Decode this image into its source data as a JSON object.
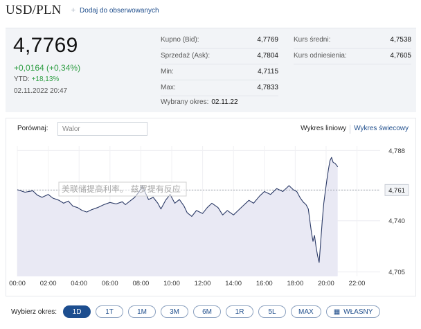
{
  "header": {
    "title": "USD/PLN",
    "watch_label": "Dodaj do obserwowanych"
  },
  "quote": {
    "price": "4,7769",
    "change": "+0,0164 (+0,34%)",
    "ytd_label": "YTD:",
    "ytd_value": "+18,13%",
    "datetime": "02.11.2022 20:47",
    "positive_color": "#2f9e44"
  },
  "stats": {
    "bid_label": "Kupno (Bid):",
    "bid_value": "4,7769",
    "ask_label": "Sprzedaż (Ask):",
    "ask_value": "4,7804",
    "min_label": "Min:",
    "min_value": "4,7115",
    "max_label": "Max:",
    "max_value": "4,7833",
    "avg_label": "Kurs średni:",
    "avg_value": "4,7538",
    "ref_label": "Kurs odniesienia:",
    "ref_value": "4,7605",
    "selected_label": "Wybrany okres:",
    "selected_value": "02.11.22"
  },
  "compare": {
    "label": "Porównaj:",
    "placeholder": "Walor"
  },
  "chart_tabs": {
    "line": "Wykres liniowy",
    "candle": "Wykres świecowy"
  },
  "chart_data": {
    "type": "area",
    "x_ticks": [
      "00:00",
      "02:00",
      "04:00",
      "06:00",
      "08:00",
      "10:00",
      "12:00",
      "14:00",
      "16:00",
      "18:00",
      "20:00",
      "22:00"
    ],
    "y_ticks": [
      "4,788",
      "4,761",
      "4,740",
      "4,705"
    ],
    "ylim": [
      4.702,
      4.791
    ],
    "reference_line": 4.761,
    "reference_label": "4,761",
    "series_points": [
      [
        0.0,
        4.7612
      ],
      [
        0.5,
        4.7595
      ],
      [
        1.0,
        4.7605
      ],
      [
        1.3,
        4.7575
      ],
      [
        1.6,
        4.756
      ],
      [
        2.0,
        4.758
      ],
      [
        2.3,
        4.7555
      ],
      [
        2.7,
        4.754
      ],
      [
        3.0,
        4.752
      ],
      [
        3.3,
        4.7535
      ],
      [
        3.6,
        4.75
      ],
      [
        3.9,
        4.749
      ],
      [
        4.2,
        4.747
      ],
      [
        4.5,
        4.746
      ],
      [
        4.8,
        4.7475
      ],
      [
        5.2,
        4.749
      ],
      [
        5.6,
        4.751
      ],
      [
        6.0,
        4.7525
      ],
      [
        6.4,
        4.7515
      ],
      [
        6.8,
        4.753
      ],
      [
        7.0,
        4.751
      ],
      [
        7.3,
        4.7535
      ],
      [
        7.6,
        4.756
      ],
      [
        7.9,
        4.76
      ],
      [
        8.1,
        4.764
      ],
      [
        8.3,
        4.759
      ],
      [
        8.5,
        4.7545
      ],
      [
        8.8,
        4.756
      ],
      [
        9.1,
        4.752
      ],
      [
        9.3,
        4.748
      ],
      [
        9.6,
        4.754
      ],
      [
        9.9,
        4.758
      ],
      [
        10.2,
        4.752
      ],
      [
        10.5,
        4.7545
      ],
      [
        10.8,
        4.75
      ],
      [
        11.0,
        4.7455
      ],
      [
        11.3,
        4.743
      ],
      [
        11.6,
        4.747
      ],
      [
        12.0,
        4.745
      ],
      [
        12.3,
        4.749
      ],
      [
        12.6,
        4.752
      ],
      [
        13.0,
        4.749
      ],
      [
        13.3,
        4.744
      ],
      [
        13.6,
        4.747
      ],
      [
        14.0,
        4.744
      ],
      [
        14.3,
        4.747
      ],
      [
        14.6,
        4.75
      ],
      [
        15.0,
        4.754
      ],
      [
        15.3,
        4.752
      ],
      [
        15.7,
        4.757
      ],
      [
        16.0,
        4.76
      ],
      [
        16.4,
        4.758
      ],
      [
        16.8,
        4.762
      ],
      [
        17.2,
        4.76
      ],
      [
        17.6,
        4.764
      ],
      [
        17.9,
        4.761
      ],
      [
        18.1,
        4.76
      ],
      [
        18.3,
        4.756
      ],
      [
        18.5,
        4.753
      ],
      [
        18.7,
        4.751
      ],
      [
        18.85,
        4.748
      ],
      [
        18.95,
        4.74
      ],
      [
        19.05,
        4.732
      ],
      [
        19.15,
        4.726
      ],
      [
        19.25,
        4.73
      ],
      [
        19.35,
        4.722
      ],
      [
        19.45,
        4.716
      ],
      [
        19.55,
        4.7115
      ],
      [
        19.65,
        4.726
      ],
      [
        19.75,
        4.74
      ],
      [
        19.85,
        4.752
      ],
      [
        19.95,
        4.76
      ],
      [
        20.05,
        4.768
      ],
      [
        20.15,
        4.775
      ],
      [
        20.25,
        4.781
      ],
      [
        20.35,
        4.7833
      ],
      [
        20.45,
        4.78
      ],
      [
        20.6,
        4.779
      ],
      [
        20.75,
        4.7769
      ]
    ],
    "line_color": "#2b3a66",
    "fill_color": "#e9e9f4"
  },
  "tooltip_text": "美联储提高利率。 兹罗提有反应",
  "periods": {
    "label": "Wybierz okres:",
    "options": [
      "1D",
      "1T",
      "1M",
      "3M",
      "6M",
      "1R",
      "5L",
      "MAX"
    ],
    "selected": "1D",
    "custom_label": "WŁASNY"
  }
}
